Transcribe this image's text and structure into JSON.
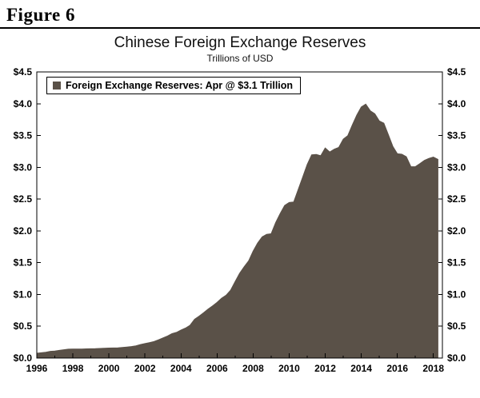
{
  "figure_label": "Figure 6",
  "chart": {
    "title": "Chinese Foreign Exchange Reserves",
    "subtitle": "Trillions of USD",
    "legend_label": "Foreign Exchange Reserves: Apr @ $3.1 Trillion"
  },
  "chart_data": {
    "type": "area",
    "title": "Chinese Foreign Exchange Reserves",
    "subtitle": "Trillions of USD",
    "series_name": "Foreign Exchange Reserves",
    "legend_label": "Foreign Exchange Reserves: Apr @ $3.1 Trillion",
    "unit": "Trillions of USD",
    "fill_color": "#5a5148",
    "xlim": [
      1996,
      2018.5
    ],
    "ylim": [
      0,
      4.5
    ],
    "x_ticks": [
      1996,
      1998,
      2000,
      2002,
      2004,
      2006,
      2008,
      2010,
      2012,
      2014,
      2016,
      2018
    ],
    "x_tick_labels": [
      "1996",
      "1998",
      "2000",
      "2002",
      "2004",
      "2006",
      "2008",
      "2010",
      "2012",
      "2014",
      "2016",
      "2018"
    ],
    "y_ticks": [
      0,
      0.5,
      1.0,
      1.5,
      2.0,
      2.5,
      3.0,
      3.5,
      4.0,
      4.5
    ],
    "y_tick_labels": [
      "$0.0",
      "$0.5",
      "$1.0",
      "$1.5",
      "$2.0",
      "$2.5",
      "$3.0",
      "$3.5",
      "$4.0",
      "$4.5"
    ],
    "x": [
      1996,
      1996.25,
      1996.5,
      1996.75,
      1997,
      1997.25,
      1997.5,
      1997.75,
      1998,
      1998.25,
      1998.5,
      1998.75,
      1999,
      1999.25,
      1999.5,
      1999.75,
      2000,
      2000.25,
      2000.5,
      2000.75,
      2001,
      2001.25,
      2001.5,
      2001.75,
      2002,
      2002.25,
      2002.5,
      2002.75,
      2003,
      2003.25,
      2003.5,
      2003.75,
      2004,
      2004.25,
      2004.5,
      2004.75,
      2005,
      2005.25,
      2005.5,
      2005.75,
      2006,
      2006.25,
      2006.5,
      2006.75,
      2007,
      2007.25,
      2007.5,
      2007.75,
      2008,
      2008.25,
      2008.5,
      2008.75,
      2009,
      2009.25,
      2009.5,
      2009.75,
      2010,
      2010.25,
      2010.5,
      2010.75,
      2011,
      2011.25,
      2011.5,
      2011.75,
      2012,
      2012.25,
      2012.5,
      2012.75,
      2013,
      2013.25,
      2013.5,
      2013.75,
      2014,
      2014.25,
      2014.5,
      2014.75,
      2015,
      2015.25,
      2015.5,
      2015.75,
      2016,
      2016.25,
      2016.5,
      2016.75,
      2017,
      2017.25,
      2017.5,
      2017.75,
      2018,
      2018.25
    ],
    "y": [
      0.076,
      0.083,
      0.09,
      0.105,
      0.11,
      0.121,
      0.131,
      0.14,
      0.141,
      0.141,
      0.141,
      0.145,
      0.146,
      0.147,
      0.151,
      0.155,
      0.157,
      0.159,
      0.16,
      0.166,
      0.174,
      0.181,
      0.192,
      0.212,
      0.227,
      0.243,
      0.259,
      0.286,
      0.316,
      0.346,
      0.384,
      0.403,
      0.44,
      0.471,
      0.515,
      0.61,
      0.659,
      0.711,
      0.769,
      0.819,
      0.875,
      0.941,
      0.988,
      1.066,
      1.202,
      1.333,
      1.434,
      1.528,
      1.682,
      1.809,
      1.906,
      1.946,
      1.954,
      2.132,
      2.273,
      2.399,
      2.447,
      2.454,
      2.648,
      2.847,
      3.045,
      3.197,
      3.202,
      3.181,
      3.305,
      3.24,
      3.285,
      3.312,
      3.443,
      3.497,
      3.663,
      3.821,
      3.948,
      3.993,
      3.888,
      3.843,
      3.73,
      3.694,
      3.514,
      3.33,
      3.213,
      3.205,
      3.166,
      3.011,
      3.009,
      3.057,
      3.109,
      3.14,
      3.161,
      3.125
    ]
  }
}
